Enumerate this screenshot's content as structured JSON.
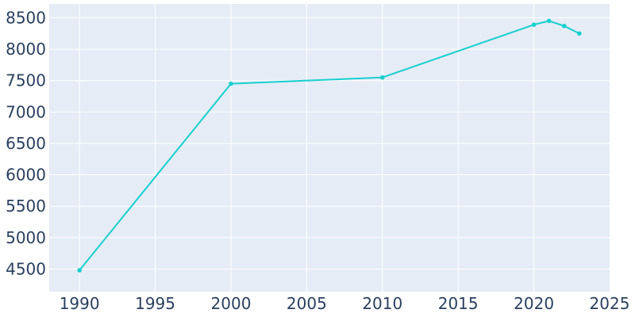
{
  "chart_data": {
    "type": "line",
    "title": "",
    "xlabel": "",
    "ylabel": "",
    "x": [
      1990,
      2000,
      2010,
      2020,
      2021,
      2022,
      2023
    ],
    "series": [
      {
        "values": [
          4480,
          7450,
          7550,
          8390,
          8450,
          8370,
          8250
        ]
      }
    ],
    "xlim": [
      1988,
      2025
    ],
    "ylim": [
      4140,
      8720
    ],
    "xticks": [
      1990,
      1995,
      2000,
      2005,
      2010,
      2015,
      2020,
      2025
    ],
    "yticks": [
      4500,
      5000,
      5500,
      6000,
      6500,
      7000,
      7500,
      8000,
      8500
    ],
    "grid": true,
    "legend": "none",
    "colors": {
      "line": "#17cfcf",
      "plot_bg": "#e5ecf6",
      "grid": "#ffffff",
      "text": "#2a3f5f"
    }
  }
}
